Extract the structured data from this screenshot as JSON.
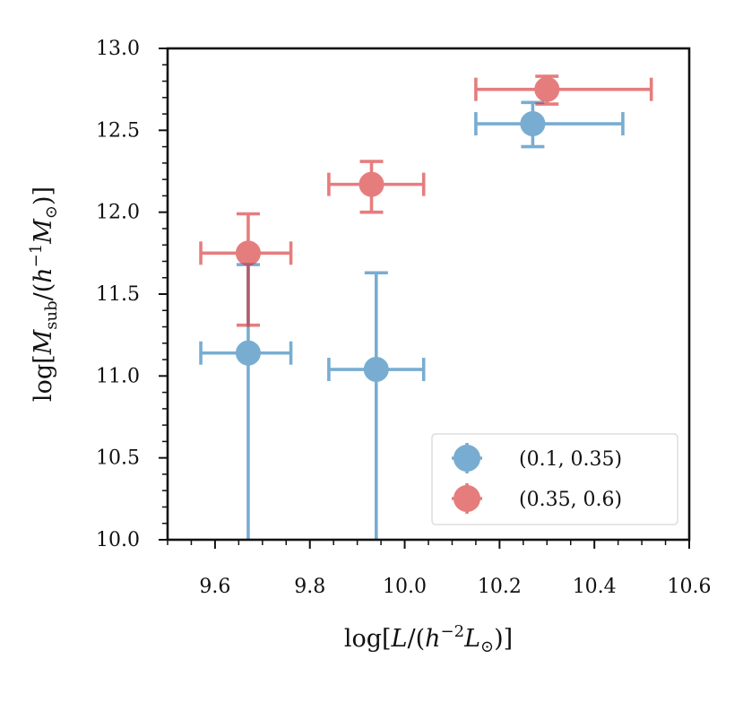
{
  "chart_data": {
    "type": "scatter",
    "title": "",
    "xlabel": "log[L/(h⁻² L⊙)]",
    "ylabel": "log[M_sub/(h⁻¹ M⊙)]",
    "xlim": [
      9.5,
      10.6
    ],
    "ylim": [
      10.0,
      13.0
    ],
    "x_ticks": [
      9.6,
      9.8,
      10.0,
      10.2,
      10.4,
      10.6
    ],
    "x_tick_labels": [
      "9.6",
      "9.8",
      "10.0",
      "10.2",
      "10.4",
      "10.6"
    ],
    "y_ticks": [
      10.0,
      10.5,
      11.0,
      11.5,
      12.0,
      12.5,
      13.0
    ],
    "y_tick_labels": [
      "10.0",
      "10.5",
      "11.0",
      "11.5",
      "12.0",
      "12.5",
      "13.0"
    ],
    "grid": false,
    "legend_position": "bottom-right",
    "series": [
      {
        "name": "(0.1, 0.35)",
        "color": "#1f77b4",
        "points": [
          {
            "x": 9.67,
            "y": 11.14,
            "xerr": [
              0.1,
              0.09
            ],
            "yerr": [
              1.6,
              0.54
            ]
          },
          {
            "x": 9.94,
            "y": 11.04,
            "xerr": [
              0.1,
              0.1
            ],
            "yerr": [
              1.6,
              0.59
            ]
          },
          {
            "x": 10.27,
            "y": 12.54,
            "xerr": [
              0.12,
              0.19
            ],
            "yerr": [
              0.14,
              0.13
            ]
          }
        ]
      },
      {
        "name": "(0.35, 0.6)",
        "color": "#d62728",
        "points": [
          {
            "x": 9.67,
            "y": 11.75,
            "xerr": [
              0.1,
              0.09
            ],
            "yerr": [
              0.44,
              0.24
            ]
          },
          {
            "x": 9.93,
            "y": 12.17,
            "xerr": [
              0.09,
              0.11
            ],
            "yerr": [
              0.17,
              0.14
            ]
          },
          {
            "x": 10.3,
            "y": 12.75,
            "xerr": [
              0.15,
              0.22
            ],
            "yerr": [
              0.09,
              0.08
            ]
          }
        ]
      }
    ]
  }
}
